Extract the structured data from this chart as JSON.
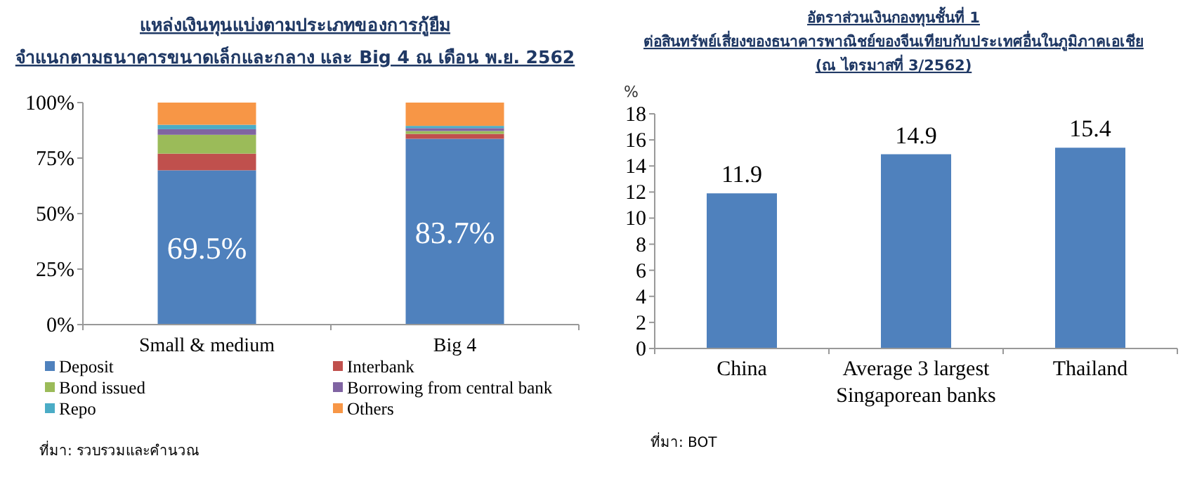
{
  "chart_data": [
    {
      "type": "bar",
      "title": "แหล่งเงินทุนแบ่งตามประเภทของการกู้ยืม จำแนกตามธนาคารขนาดเล็กและกลาง และ Big 4 ณ เดือน พ.ย. 2562",
      "categories": [
        "Small & medium",
        "Big 4"
      ],
      "stacked": true,
      "series": [
        {
          "name": "Deposit",
          "color": "#4f81bd",
          "values": [
            69.5,
            83.7
          ],
          "value_labels": [
            "69.5%",
            "83.7%"
          ]
        },
        {
          "name": "Interbank",
          "color": "#c0504d",
          "values": [
            7.5,
            2.2
          ]
        },
        {
          "name": "Bond issued",
          "color": "#9bbb59",
          "values": [
            8.5,
            1.3
          ]
        },
        {
          "name": "Borrowing from central bank",
          "color": "#8064a2",
          "values": [
            2.5,
            1.3
          ]
        },
        {
          "name": "Repo",
          "color": "#4bacc6",
          "values": [
            2.0,
            1.0
          ]
        },
        {
          "name": "Others",
          "color": "#f79646",
          "values": [
            10.0,
            10.5
          ]
        }
      ],
      "ylim": [
        0,
        100
      ],
      "yticks": [
        {
          "value": 0,
          "label": "0%"
        },
        {
          "value": 25,
          "label": "25%"
        },
        {
          "value": 50,
          "label": "50%"
        },
        {
          "value": 75,
          "label": "75%"
        },
        {
          "value": 100,
          "label": "100%"
        }
      ],
      "legend": "bottom",
      "grid": false,
      "annotations": [
        "ที่มา: รวบรวมและคำนวณ"
      ]
    },
    {
      "type": "bar",
      "title": "อัตราส่วนเงินกองทุนชั้นที่ 1 ต่อสินทรัพย์เสี่ยงของธนาคารพาณิชย์ของจีนเทียบกับประเทศอื่นในภูมิภาคเอเชีย (ณ ไตรมาสที่ 3/2562)",
      "ylabel": "%",
      "categories": [
        "China",
        "Average 3 largest Singaporean banks",
        "Thailand"
      ],
      "series": [
        {
          "color": "#4f81bd",
          "values": [
            11.9,
            14.9,
            15.4
          ]
        }
      ],
      "ylim": [
        0,
        18
      ],
      "yticks": [
        0,
        2,
        4,
        6,
        8,
        10,
        12,
        14,
        16,
        18
      ],
      "data_labels": true,
      "grid": false,
      "annotations": [
        "ที่มา: BOT"
      ]
    }
  ]
}
